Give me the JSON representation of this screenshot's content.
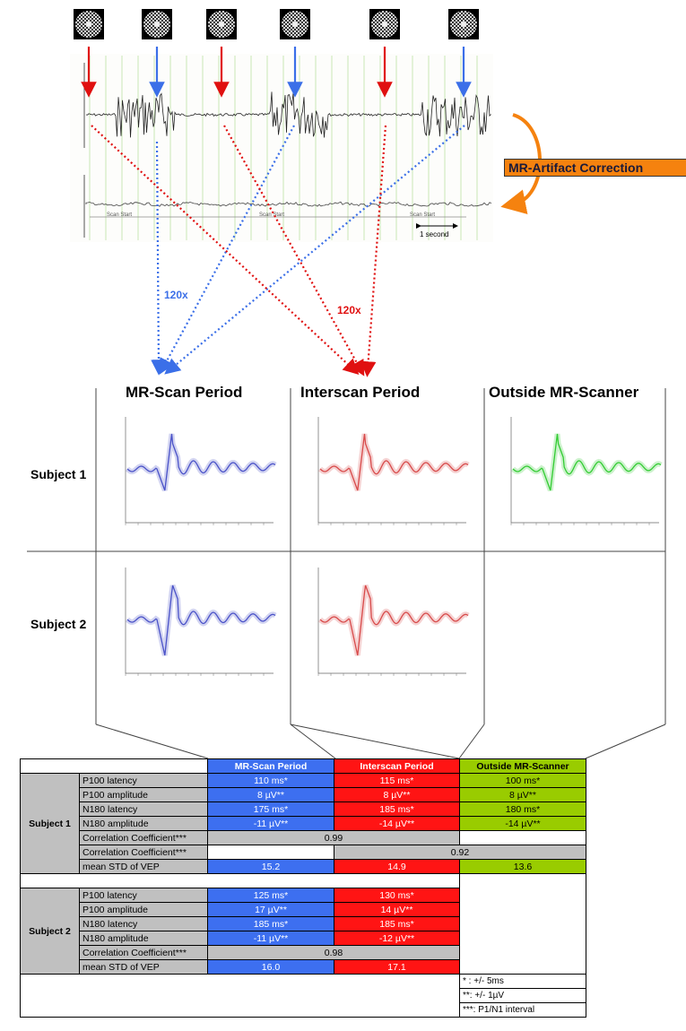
{
  "top": {
    "correction_label": "MR-Artifact Correction",
    "repeat_blue": "120x",
    "repeat_red": "120x",
    "scan_start_label": "Scan Start",
    "scale_label": "1 second"
  },
  "columns": [
    "MR-Scan Period",
    "Interscan Period",
    "Outside MR-Scanner"
  ],
  "subjects": [
    "Subject 1",
    "Subject 2"
  ],
  "colors": {
    "mr_scan": "#3d6ff0",
    "interscan": "#ff1414",
    "outside": "#99cc00",
    "orange": "#f5820f"
  },
  "table": {
    "headers": [
      "MR-Scan Period",
      "Interscan Period",
      "Outside MR-Scanner"
    ],
    "subject1": {
      "label": "Subject 1",
      "rows": [
        {
          "name": "P100 latency",
          "mr": "110 ms*",
          "inter": "115 ms*",
          "out": "100 ms*"
        },
        {
          "name": "P100 amplitude",
          "mr": "8 µV**",
          "inter": "8 µV**",
          "out": "8 µV**"
        },
        {
          "name": "N180 latency",
          "mr": "175 ms*",
          "inter": "185 ms*",
          "out": "180 ms*"
        },
        {
          "name": "N180 amplitude",
          "mr": "-11 µV**",
          "inter": "-14 µV**",
          "out": "-14 µV**"
        }
      ],
      "corr1_name": "Correlation Coefficient***",
      "corr1_value": "0.99",
      "corr2_name": "Correlation Coefficient***",
      "corr2_value": "0.92",
      "std_name": "mean STD of VEP",
      "std_mr": "15.2",
      "std_inter": "14.9",
      "std_out": "13.6"
    },
    "subject2": {
      "label": "Subject 2",
      "rows": [
        {
          "name": "P100 latency",
          "mr": "125 ms*",
          "inter": "130 ms*"
        },
        {
          "name": "P100 amplitude",
          "mr": "17 µV**",
          "inter": "14 µV**"
        },
        {
          "name": "N180 latency",
          "mr": "185 ms*",
          "inter": "185 ms*"
        },
        {
          "name": "N180 amplitude",
          "mr": "-11 µV**",
          "inter": "-12 µV**"
        }
      ],
      "corr_name": "Correlation Coefficient***",
      "corr_value": "0.98",
      "std_name": "mean STD of VEP",
      "std_mr": "16.0",
      "std_inter": "17.1"
    },
    "legend": [
      "* : +/- 5ms",
      "**: +/- 1µV",
      "***: P1/N1 interval"
    ]
  }
}
